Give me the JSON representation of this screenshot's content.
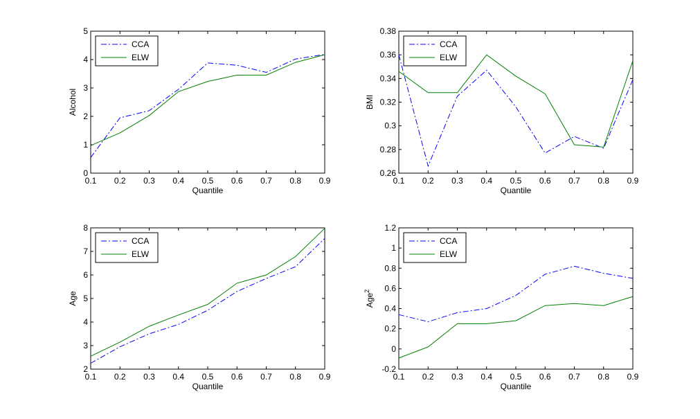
{
  "chart_data": [
    {
      "type": "line",
      "title": "",
      "xlabel": "Quantile",
      "ylabel": "Alcohol",
      "ylabel_sup": "",
      "xlim": [
        0.1,
        0.9
      ],
      "ylim": [
        0,
        5
      ],
      "xticks": [
        "0.1",
        "0.2",
        "0.3",
        "0.4",
        "0.5",
        "0.6",
        "0.7",
        "0.8",
        "0.9"
      ],
      "yticks": [
        "0",
        "1",
        "2",
        "3",
        "4",
        "5"
      ],
      "legend": "top-left",
      "x": [
        0.1,
        0.2,
        0.3,
        0.4,
        0.5,
        0.6,
        0.7,
        0.8,
        0.9
      ],
      "series": [
        {
          "name": "CCA",
          "color": "#0000ff",
          "style": "dashdot",
          "values": [
            0.55,
            1.95,
            2.2,
            2.95,
            3.88,
            3.8,
            3.55,
            4.02,
            4.18
          ]
        },
        {
          "name": "ELW",
          "color": "#008000",
          "style": "solid",
          "values": [
            0.97,
            1.42,
            2.03,
            2.87,
            3.23,
            3.45,
            3.45,
            3.9,
            4.17
          ]
        }
      ]
    },
    {
      "type": "line",
      "title": "",
      "xlabel": "Quantile",
      "ylabel": "BMI",
      "ylabel_sup": "",
      "xlim": [
        0.1,
        0.9
      ],
      "ylim": [
        0.26,
        0.38
      ],
      "xticks": [
        "0.1",
        "0.2",
        "0.3",
        "0.4",
        "0.5",
        "0.6",
        "0.7",
        "0.8",
        "0.9"
      ],
      "yticks": [
        "0.26",
        "0.28",
        "0.3",
        "0.32",
        "0.34",
        "0.36",
        "0.38"
      ],
      "legend": "top-left",
      "x": [
        0.1,
        0.2,
        0.3,
        0.4,
        0.5,
        0.6,
        0.7,
        0.8,
        0.9
      ],
      "series": [
        {
          "name": "CCA",
          "color": "#0000ff",
          "style": "dashdot",
          "values": [
            0.36,
            0.266,
            0.325,
            0.347,
            0.316,
            0.277,
            0.291,
            0.281,
            0.339
          ]
        },
        {
          "name": "ELW",
          "color": "#008000",
          "style": "solid",
          "values": [
            0.346,
            0.328,
            0.328,
            0.36,
            0.342,
            0.327,
            0.284,
            0.282,
            0.355
          ]
        }
      ]
    },
    {
      "type": "line",
      "title": "",
      "xlabel": "Quantile",
      "ylabel": "Age",
      "ylabel_sup": "",
      "xlim": [
        0.1,
        0.9
      ],
      "ylim": [
        2,
        8
      ],
      "xticks": [
        "0.1",
        "0.2",
        "0.3",
        "0.4",
        "0.5",
        "0.6",
        "0.7",
        "0.8",
        "0.9"
      ],
      "yticks": [
        "2",
        "3",
        "4",
        "5",
        "6",
        "7",
        "8"
      ],
      "legend": "top-left",
      "x": [
        0.1,
        0.2,
        0.3,
        0.4,
        0.5,
        0.6,
        0.7,
        0.8,
        0.9
      ],
      "series": [
        {
          "name": "CCA",
          "color": "#0000ff",
          "style": "dashdot",
          "values": [
            2.25,
            2.95,
            3.5,
            3.9,
            4.5,
            5.3,
            5.85,
            6.35,
            7.55
          ]
        },
        {
          "name": "ELW",
          "color": "#008000",
          "style": "solid",
          "values": [
            2.55,
            3.15,
            3.82,
            4.3,
            4.75,
            5.65,
            6.0,
            6.78,
            7.98
          ]
        }
      ]
    },
    {
      "type": "line",
      "title": "",
      "xlabel": "Quantile",
      "ylabel": "Age",
      "ylabel_sup": "2",
      "xlim": [
        0.1,
        0.9
      ],
      "ylim": [
        -0.2,
        1.2
      ],
      "xticks": [
        "0.1",
        "0.2",
        "0.3",
        "0.4",
        "0.5",
        "0.6",
        "0.7",
        "0.8",
        "0.9"
      ],
      "yticks": [
        "-0.2",
        "0",
        "0.2",
        "0.4",
        "0.6",
        "0.8",
        "1",
        "1.2"
      ],
      "legend": "top-left",
      "x": [
        0.1,
        0.2,
        0.3,
        0.4,
        0.5,
        0.6,
        0.7,
        0.8,
        0.9
      ],
      "series": [
        {
          "name": "CCA",
          "color": "#0000ff",
          "style": "dashdot",
          "values": [
            0.34,
            0.27,
            0.36,
            0.4,
            0.53,
            0.74,
            0.82,
            0.75,
            0.7
          ]
        },
        {
          "name": "ELW",
          "color": "#008000",
          "style": "solid",
          "values": [
            -0.09,
            0.02,
            0.25,
            0.25,
            0.28,
            0.43,
            0.45,
            0.43,
            0.52
          ]
        }
      ]
    }
  ]
}
